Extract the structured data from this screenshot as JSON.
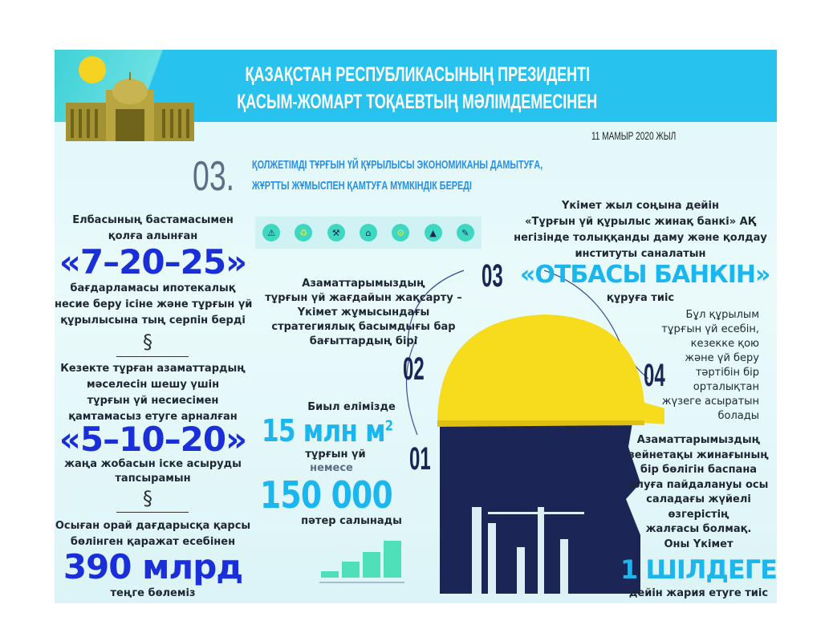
{
  "header": {
    "title_line1": "ҚАЗАҚСТАН РЕСПУБЛИКАСЫНЫҢ ПРЕЗИДЕНТІ",
    "title_line2": "ҚАСЫМ-ЖОМАРТ ТОҚАЕВТЫҢ МӘЛІМДЕМЕСІНЕН",
    "date": "11 МАМЫР 2020 ЖЫЛ"
  },
  "section": {
    "number": "03.",
    "subtitle_line1": "ҚОЛЖЕТІМДІ ТҰРҒЫН ҮЙ ҚҰРЫЛЫСЫ ЭКОНОМИКАНЫ ДАМЫТУҒА,",
    "subtitle_line2": "ЖҰРТТЫ ЖҰМЫСПЕН ҚАМТУҒА МҮМКІНДІК БЕРЕДІ"
  },
  "left": {
    "a1": "Елбасының бастамасымен",
    "a2": "қолға алынған",
    "a_big": "«7–20–25»",
    "a3": "бағдарламасы ипотекалық",
    "a4": "несие беру ісіне және тұрғын үй",
    "a5": "құрылысына тың серпін берді",
    "b1": "Кезекте тұрған азаматтардың",
    "b2": "мәселесін шешу үшін",
    "b3": "тұрғын үй несиесімен",
    "b4": "қамтамасыз етуге арналған",
    "b_big": "«5–10–20»",
    "b5": "жаңа жобасын іске асыруды",
    "b6": "тапсырамын",
    "c1": "Осыған орай дағдарысқа қарсы",
    "c2": "бөлінген қаражат есебінен",
    "c_big": "390 млрд",
    "c3": "теңге бөлеміз"
  },
  "icons": [
    "warning-icon",
    "recycle-icon",
    "shovel-icon",
    "house-icon",
    "gear-icon",
    "traffic-cone-icon",
    "wrench-icon"
  ],
  "center": {
    "p1": "Азаматтарымыздың",
    "p2": "тұрғын үй жағдайын жақсарту –",
    "p3": "Үкімет жұмысындағы",
    "p4": "стратегиялық басымдығы бар",
    "p5": "бағыттардың бірі",
    "q1": "Биыл елімізде",
    "q_big1": "15 млн м",
    "q_sup": "2",
    "q2": "тұрғын үй",
    "q3": "немесе",
    "q_big2": "150 000",
    "q4": "пәтер салынады"
  },
  "markers": {
    "m1": "01",
    "m2": "02",
    "m3": "03",
    "m4": "04"
  },
  "right": {
    "r1": "Үкімет жыл соңына дейін",
    "r2": "«Тұрғын үй құрылыс жинақ банкі» АҚ",
    "r3": "негізінде толыққанды даму және қолдау",
    "r4": "институты саналатын",
    "r_big": "«ОТБАСЫ БАНКІН»",
    "r5": "құруға тиіс",
    "s": [
      "Бұл құрылым",
      "тұрғын үй есебін,",
      "кезекке қою",
      "және үй беру",
      "тәртібін бір",
      "орталықтан",
      "жүзеге асыратын",
      "болады"
    ],
    "u": [
      "Азаматтарымыздың",
      "зейнетақы жинағының",
      "бір бөлігін баспана",
      "алуға пайдалануы осы",
      "саладағы жүйелі",
      "өзгерістің",
      "жалғасы болмақ.",
      "Оны Үкімет"
    ],
    "u_big": "1 ШІЛДЕГЕ",
    "u_end": "дейін жария етуге тиіс"
  },
  "colors": {
    "header": "#27c3ee",
    "program_blue": "#1a2fd8",
    "cyan": "#1cb6ef",
    "navy": "#1b2556",
    "helmet": "#f7dc1e",
    "section_blue": "#2a8fe0"
  }
}
